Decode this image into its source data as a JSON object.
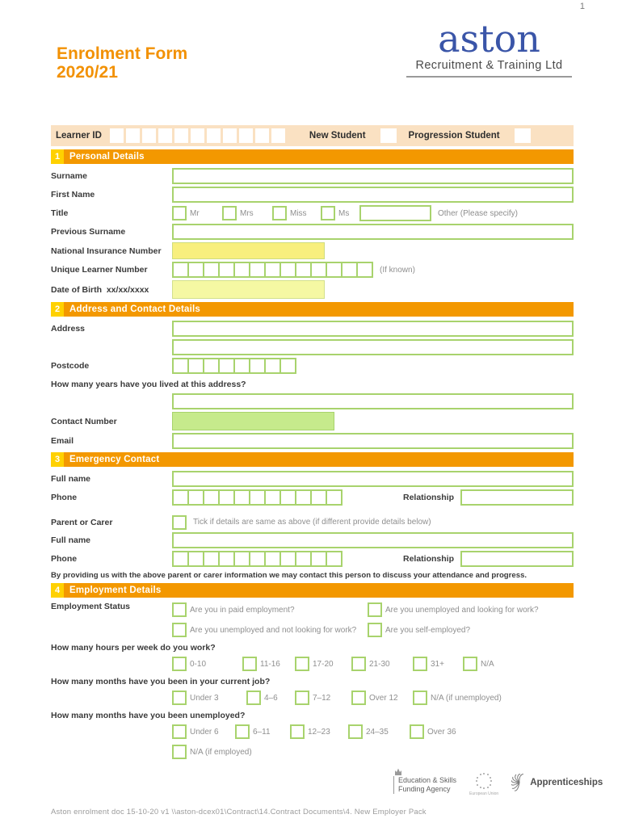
{
  "page": {
    "number": "1",
    "footer_text": "Aston enrolment doc 15-10-20 v1  \\\\aston-dcex01\\Contract\\14.Contract Documents\\4. New Employer Pack"
  },
  "colors": {
    "orange_header": "#F39800",
    "gold_badge": "#FFD100",
    "title_orange": "#F29104",
    "green_border": "#A8D36D",
    "green_fill": "#C6EA8C",
    "yellow_fill": "#F8EF7E",
    "pale_yellow_fill": "#F5F8A3",
    "peach_bar": "#FAE1C2",
    "logo_blue": "#3A55A8"
  },
  "header": {
    "title_line1": "Enrolment Form",
    "title_line2": "2020/21",
    "logo_name": "aston",
    "logo_subtitle": "Recruitment & Training Ltd"
  },
  "learner_bar": {
    "label": "Learner ID",
    "new_student_label": "New Student",
    "progression_label": "Progression Student"
  },
  "section1": {
    "number": "1",
    "title": "Personal Details",
    "surname_label": "Surname",
    "first_name_label": "First Name",
    "title_label": "Title",
    "title_options": [
      "Mr",
      "Mrs",
      "Miss",
      "Ms"
    ],
    "other_label": "Other (Please specify)",
    "previous_surname_label": "Previous Surname",
    "ni_label": "National Insurance Number",
    "uln_label": "Unique Learner Number",
    "uln_note": "(If known)",
    "dob_label": "Date of Birth",
    "dob_format": "xx/xx/xxxx"
  },
  "section2": {
    "number": "2",
    "title": "Address and Contact Details",
    "address_label": "Address",
    "postcode_label": "Postcode",
    "years_question": "How many years have you lived at this address?",
    "contact_number_label": "Contact Number",
    "email_label": "Email"
  },
  "section3": {
    "number": "3",
    "title": "Emergency Contact",
    "full_name_label": "Full name",
    "phone_label": "Phone",
    "relationship_label": "Relationship",
    "parent_label": "Parent or Carer",
    "parent_tick_label": "Tick if details are same as above (if different provide details below)",
    "note": "By providing us with the above parent or carer information we may contact this person to discuss your attendance and progress."
  },
  "section4": {
    "number": "4",
    "title": "Employment Details",
    "status_label": "Employment Status",
    "status_options": [
      "Are you in paid employment?",
      "Are you unemployed and looking for work?",
      "Are you unemployed and not looking for work?",
      "Are you self-employed?"
    ],
    "hours_question": "How many hours per week do you work?",
    "hours_options": [
      "0-10",
      "11-16",
      "17-20",
      "21-30",
      "31+",
      "N/A"
    ],
    "job_months_question": "How many months have you been in your current job?",
    "job_months_options": [
      "Under 3",
      "4–6",
      "7–12",
      "Over 12",
      "N/A (if unemployed)"
    ],
    "unemployed_question": "How many months have you been unemployed?",
    "unemployed_options": [
      "Under 6",
      "6–11",
      "12–23",
      "24–35",
      "Over 36"
    ],
    "unemployed_na": "N/A (if employed)"
  },
  "footer_logos": {
    "esfa_line1": "Education & Skills",
    "esfa_line2": "Funding Agency",
    "eu_label": "European Union",
    "apprenticeships_label": "Apprenticeships"
  }
}
